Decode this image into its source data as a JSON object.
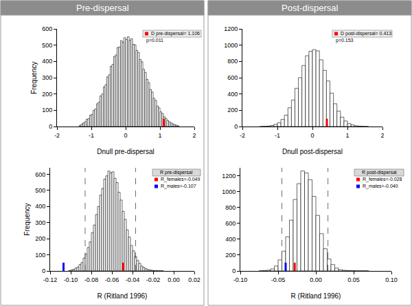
{
  "panels": [
    "Pre-dispersal",
    "Post-dispersal"
  ],
  "chart_data": [
    {
      "type": "histogram",
      "xlabel": "Dnull pre-dispersal",
      "ylabel": "Frequency",
      "bins": [
        -1.35,
        -1.3,
        -1.25,
        -1.2,
        -1.15,
        -1.1,
        -1.05,
        -1,
        -0.95,
        -0.9,
        -0.85,
        -0.8,
        -0.75,
        -0.7,
        -0.65,
        -0.6,
        -0.55,
        -0.5,
        -0.45,
        -0.4,
        -0.35,
        -0.3,
        -0.25,
        -0.2,
        -0.15,
        -0.1,
        -0.05,
        0,
        0.05,
        0.1,
        0.15,
        0.2,
        0.25,
        0.3,
        0.35,
        0.4,
        0.45,
        0.5,
        0.55,
        0.6,
        0.65,
        0.7,
        0.75,
        0.8,
        0.85,
        0.9,
        0.95,
        1,
        1.05,
        1.1,
        1.15,
        1.2,
        1.25,
        1.3,
        1.35,
        1.4,
        1.45,
        1.5,
        1.55
      ],
      "counts": [
        8,
        14,
        22,
        30,
        45,
        48,
        70,
        75,
        100,
        108,
        140,
        150,
        188,
        200,
        244,
        258,
        305,
        318,
        370,
        382,
        431,
        440,
        486,
        489,
        528,
        518,
        546,
        535,
        552,
        530,
        540,
        505,
        502,
        468,
        455,
        412,
        398,
        352,
        333,
        290,
        270,
        228,
        212,
        174,
        160,
        126,
        115,
        90,
        80,
        60,
        50,
        38,
        30,
        22,
        16,
        12,
        8,
        5
      ],
      "color": "#ffffff",
      "xlim": [
        -2,
        2
      ],
      "xticks": [
        -2,
        -1,
        0,
        1,
        2
      ],
      "ylim": [
        0,
        600
      ],
      "yticks": [
        0,
        100,
        200,
        300,
        400,
        500,
        600
      ],
      "legend": "upper right",
      "markers": [
        {
          "name": "D pre-dispersal= 1.106",
          "value": 1.106,
          "color": "#ff0000"
        }
      ],
      "annotations": [
        "p=0.011"
      ]
    },
    {
      "type": "histogram",
      "xlabel": "Dnull post-dispersal",
      "bins": [
        -1.5,
        -1.4,
        -1.3,
        -1.2,
        -1.1,
        -1,
        -0.9,
        -0.8,
        -0.7,
        -0.6,
        -0.5,
        -0.4,
        -0.3,
        -0.2,
        -0.1,
        0,
        0.1,
        0.2,
        0.3,
        0.4,
        0.5,
        0.6,
        0.7,
        0.8,
        0.9,
        1,
        1.1,
        1.2,
        1.3,
        1.4,
        1.5,
        1.6
      ],
      "counts": [
        1,
        3,
        6,
        13,
        26,
        46,
        88,
        140,
        230,
        325,
        470,
        600,
        750,
        870,
        925,
        945,
        930,
        820,
        690,
        560,
        410,
        280,
        190,
        115,
        68,
        36,
        20,
        9,
        5,
        2,
        1
      ],
      "color": "#ffffff",
      "xlim": [
        -2,
        2
      ],
      "xticks": [
        -2,
        -1,
        0,
        1,
        2
      ],
      "ylim": [
        0,
        1200
      ],
      "yticks": [
        0,
        200,
        400,
        600,
        800,
        1000,
        1200
      ],
      "legend": "upper right",
      "markers": [
        {
          "name": "D post-dispersal= 0.413",
          "value": 0.413,
          "color": "#ff0000"
        }
      ],
      "annotations": [
        "p=0.153"
      ]
    },
    {
      "type": "histogram",
      "xlabel": "R (Ritland 1996)",
      "ylabel": "Frequency",
      "bins": [
        -0.102,
        -0.1,
        -0.098,
        -0.096,
        -0.094,
        -0.092,
        -0.09,
        -0.088,
        -0.086,
        -0.084,
        -0.082,
        -0.08,
        -0.078,
        -0.076,
        -0.074,
        -0.072,
        -0.07,
        -0.068,
        -0.066,
        -0.064,
        -0.062,
        -0.06,
        -0.058,
        -0.056,
        -0.054,
        -0.052,
        -0.05,
        -0.048,
        -0.046,
        -0.044,
        -0.042,
        -0.04,
        -0.038,
        -0.036,
        -0.034,
        -0.032,
        -0.03,
        -0.028,
        -0.026,
        -0.024,
        -0.022,
        -0.02,
        -0.018,
        -0.016,
        -0.014,
        -0.012,
        -0.01
      ],
      "counts": [
        3,
        6,
        10,
        18,
        24,
        40,
        52,
        80,
        104,
        145,
        180,
        238,
        285,
        350,
        400,
        470,
        512,
        570,
        590,
        620,
        610,
        615,
        575,
        548,
        488,
        440,
        370,
        320,
        255,
        210,
        158,
        125,
        90,
        65,
        47,
        30,
        22,
        14,
        9,
        6,
        4,
        2,
        2,
        1,
        1,
        1
      ],
      "color": "#ffffff",
      "xlim": [
        -0.12,
        0.02
      ],
      "xticks": [
        -0.12,
        {
          "value": -0.1,
          "label": "-0.10"
        },
        -0.08,
        -0.06,
        -0.04,
        -0.02,
        {
          "value": 0,
          "label": "0.00"
        },
        0.02
      ],
      "ylim": [
        0,
        640
      ],
      "yticks": [
        0,
        100,
        200,
        300,
        400,
        500,
        600
      ],
      "legend": "upper right",
      "legend_title": "R pre-dispersal",
      "markers": [
        {
          "name": "R_females=-0.049",
          "value": -0.049,
          "color": "#ff0000"
        },
        {
          "name": "R_males=-0.107",
          "value": -0.107,
          "color": "#0000ff"
        }
      ],
      "reference_lines": [
        -0.086,
        -0.037
      ]
    },
    {
      "type": "histogram",
      "xlabel": "R (Ritland 1996)",
      "bins": [
        -0.075,
        -0.07,
        -0.065,
        -0.06,
        -0.055,
        -0.05,
        -0.045,
        -0.04,
        -0.035,
        -0.03,
        -0.025,
        -0.02,
        -0.015,
        -0.01,
        -0.005,
        0,
        0.005,
        0.01,
        0.015,
        0.02,
        0.025,
        0.03,
        0.035,
        0.04,
        0.045,
        0.05,
        0.055,
        0.06,
        0.065,
        0.07
      ],
      "counts": [
        2,
        4,
        10,
        26,
        62,
        140,
        250,
        430,
        640,
        900,
        1100,
        1260,
        1235,
        1150,
        940,
        700,
        470,
        280,
        150,
        80,
        36,
        16,
        8,
        4,
        3,
        2,
        1,
        1,
        1
      ],
      "color": "#ffffff",
      "xlim": [
        -0.1,
        0.1
      ],
      "xticks": [
        {
          "value": -0.1,
          "label": "-0.10"
        },
        -0.05,
        {
          "value": 0,
          "label": "0.00"
        },
        0.05,
        {
          "value": 0.1,
          "label": "0.10"
        }
      ],
      "ylim": [
        0,
        1300
      ],
      "yticks": [
        0,
        200,
        400,
        600,
        800,
        1000,
        1200
      ],
      "legend": "upper right",
      "legend_title": "R post-dispersal",
      "markers": [
        {
          "name": "R_females=-0.028",
          "value": -0.028,
          "color": "#ff0000"
        },
        {
          "name": "R_males=-0.040",
          "value": -0.04,
          "color": "#0000ff"
        }
      ],
      "reference_lines": [
        -0.045,
        0.016
      ]
    }
  ]
}
